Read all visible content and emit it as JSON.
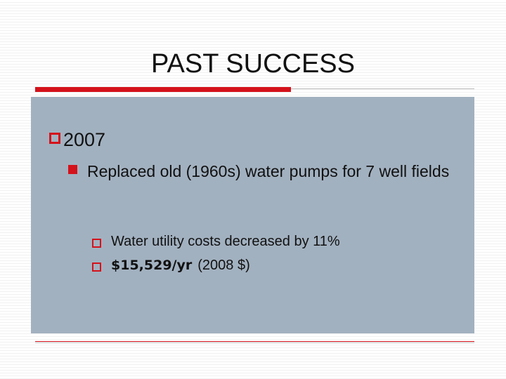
{
  "slide": {
    "title": "PAST SUCCESS",
    "bullets": [
      {
        "text": "2007",
        "sub": [
          {
            "text": "Replaced old (1960s) water pumps for 7 well fields",
            "sub": [
              {
                "text": "Water utility costs decreased by 11%"
              },
              {
                "bold": "$15,529/yr",
                "text": "(2008 $)"
              }
            ]
          }
        ]
      }
    ]
  }
}
